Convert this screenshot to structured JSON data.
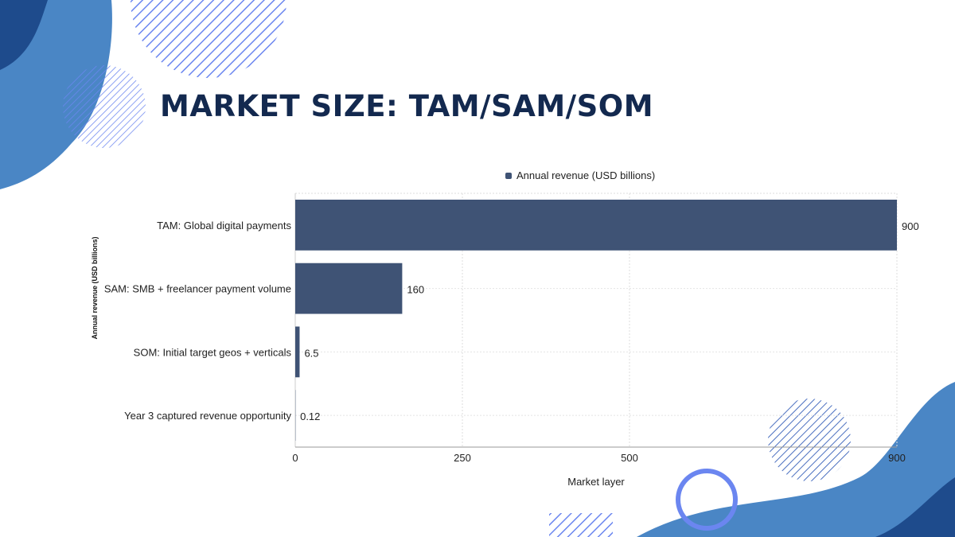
{
  "slide": {
    "title": "MARKET SIZE: TAM/SAM/SOM"
  },
  "colors": {
    "bar": "#3f5375",
    "title": "#13294f",
    "blob_light": "#4a86c5",
    "blob_dark": "#1e4b8c",
    "hatch": "#6b86f0"
  },
  "chart_data": {
    "type": "bar",
    "orientation": "horizontal",
    "categories": [
      "TAM: Global digital payments",
      "SAM: SMB + freelancer payment volume",
      "SOM: Initial target geos + verticals",
      "Year 3 captured revenue opportunity"
    ],
    "series": [
      {
        "name": "Annual revenue (USD billions)",
        "values": [
          900,
          160,
          6.5,
          0.12
        ]
      }
    ],
    "data_labels": [
      "900",
      "160",
      "6.5",
      "0.12"
    ],
    "xlabel": "Market layer",
    "ylabel": "Annual revenue (USD billions)",
    "xlim": [
      0,
      900
    ],
    "xticks": [
      0,
      250,
      500,
      900
    ],
    "grid": true,
    "legend": "top-center"
  }
}
